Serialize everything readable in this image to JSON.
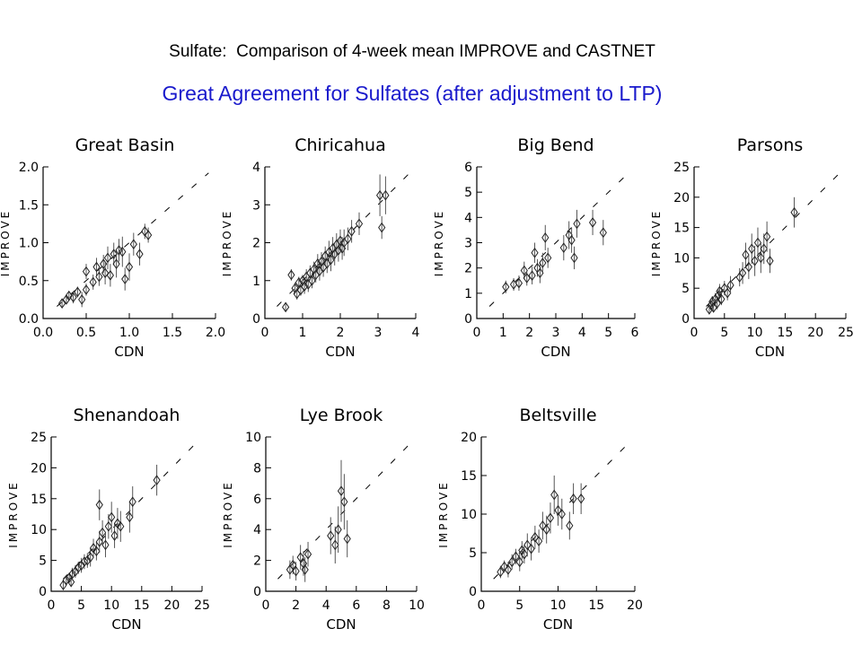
{
  "slide": {
    "title": "Sulfate:  Comparison of 4-week mean IMPROVE and CASTNET",
    "subtitle": "Great Agreement for Sulfates (after adjustment to LTP)",
    "title_color": "#000000",
    "subtitle_color": "#1a1acc"
  },
  "chart_data": [
    {
      "type": "scatter",
      "title": "Great Basin",
      "xlabel": "CDN",
      "ylabel": "IMPROVE",
      "xlim": [
        0,
        2.0
      ],
      "ylim": [
        0,
        2.0
      ],
      "xticks": [
        "0.0",
        "0.5",
        "1.0",
        "1.5",
        "2.0"
      ],
      "yticks": [
        "0.0",
        "0.5",
        "1.0",
        "1.5",
        "2.0"
      ],
      "reference_line": "1:1 dashed",
      "points": [
        {
          "x": 0.22,
          "y": 0.2,
          "err": 0.05
        },
        {
          "x": 0.27,
          "y": 0.25,
          "err": 0.06
        },
        {
          "x": 0.3,
          "y": 0.3,
          "err": 0.05
        },
        {
          "x": 0.35,
          "y": 0.28,
          "err": 0.08
        },
        {
          "x": 0.4,
          "y": 0.35,
          "err": 0.07
        },
        {
          "x": 0.45,
          "y": 0.25,
          "err": 0.1
        },
        {
          "x": 0.5,
          "y": 0.38,
          "err": 0.08
        },
        {
          "x": 0.5,
          "y": 0.62,
          "err": 0.1
        },
        {
          "x": 0.58,
          "y": 0.48,
          "err": 0.1
        },
        {
          "x": 0.62,
          "y": 0.68,
          "err": 0.12
        },
        {
          "x": 0.65,
          "y": 0.55,
          "err": 0.12
        },
        {
          "x": 0.7,
          "y": 0.72,
          "err": 0.12
        },
        {
          "x": 0.72,
          "y": 0.6,
          "err": 0.15
        },
        {
          "x": 0.75,
          "y": 0.8,
          "err": 0.15
        },
        {
          "x": 0.78,
          "y": 0.57,
          "err": 0.15
        },
        {
          "x": 0.82,
          "y": 0.85,
          "err": 0.15
        },
        {
          "x": 0.85,
          "y": 0.72,
          "err": 0.18
        },
        {
          "x": 0.88,
          "y": 0.9,
          "err": 0.15
        },
        {
          "x": 0.92,
          "y": 0.88,
          "err": 0.2
        },
        {
          "x": 0.95,
          "y": 0.52,
          "err": 0.15
        },
        {
          "x": 1.0,
          "y": 0.68,
          "err": 0.18
        },
        {
          "x": 1.05,
          "y": 0.98,
          "err": 0.15
        },
        {
          "x": 1.12,
          "y": 0.85,
          "err": 0.15
        },
        {
          "x": 1.18,
          "y": 1.15,
          "err": 0.1
        },
        {
          "x": 1.22,
          "y": 1.1,
          "err": 0.1
        }
      ]
    },
    {
      "type": "scatter",
      "title": "Chiricahua",
      "xlabel": "CDN",
      "ylabel": "IMPROVE",
      "xlim": [
        0,
        4
      ],
      "ylim": [
        0,
        4
      ],
      "xticks": [
        "0",
        "1",
        "2",
        "3",
        "4"
      ],
      "yticks": [
        "0",
        "1",
        "2",
        "3",
        "4"
      ],
      "reference_line": "1:1 dashed",
      "points": [
        {
          "x": 0.55,
          "y": 0.3,
          "err": 0.1
        },
        {
          "x": 0.7,
          "y": 1.15,
          "err": 0.15
        },
        {
          "x": 0.8,
          "y": 0.8,
          "err": 0.15
        },
        {
          "x": 0.85,
          "y": 0.65,
          "err": 0.15
        },
        {
          "x": 0.9,
          "y": 0.95,
          "err": 0.15
        },
        {
          "x": 0.95,
          "y": 0.75,
          "err": 0.15
        },
        {
          "x": 1.0,
          "y": 1.0,
          "err": 0.15
        },
        {
          "x": 1.05,
          "y": 0.85,
          "err": 0.2
        },
        {
          "x": 1.1,
          "y": 1.1,
          "err": 0.2
        },
        {
          "x": 1.15,
          "y": 0.9,
          "err": 0.2
        },
        {
          "x": 1.2,
          "y": 1.2,
          "err": 0.2
        },
        {
          "x": 1.25,
          "y": 1.0,
          "err": 0.2
        },
        {
          "x": 1.3,
          "y": 1.3,
          "err": 0.2
        },
        {
          "x": 1.35,
          "y": 1.15,
          "err": 0.2
        },
        {
          "x": 1.4,
          "y": 1.45,
          "err": 0.25
        },
        {
          "x": 1.45,
          "y": 1.25,
          "err": 0.25
        },
        {
          "x": 1.5,
          "y": 1.5,
          "err": 0.25
        },
        {
          "x": 1.55,
          "y": 1.35,
          "err": 0.25
        },
        {
          "x": 1.6,
          "y": 1.65,
          "err": 0.25
        },
        {
          "x": 1.65,
          "y": 1.45,
          "err": 0.25
        },
        {
          "x": 1.7,
          "y": 1.75,
          "err": 0.3
        },
        {
          "x": 1.75,
          "y": 1.55,
          "err": 0.3
        },
        {
          "x": 1.8,
          "y": 1.85,
          "err": 0.3
        },
        {
          "x": 1.85,
          "y": 1.7,
          "err": 0.3
        },
        {
          "x": 1.9,
          "y": 1.95,
          "err": 0.3
        },
        {
          "x": 1.95,
          "y": 1.8,
          "err": 0.3
        },
        {
          "x": 2.0,
          "y": 2.05,
          "err": 0.3
        },
        {
          "x": 2.05,
          "y": 1.85,
          "err": 0.3
        },
        {
          "x": 2.1,
          "y": 2.0,
          "err": 0.35
        },
        {
          "x": 2.2,
          "y": 2.1,
          "err": 0.3
        },
        {
          "x": 2.3,
          "y": 2.3,
          "err": 0.3
        },
        {
          "x": 2.5,
          "y": 2.5,
          "err": 0.3
        },
        {
          "x": 3.05,
          "y": 3.25,
          "err": 0.55
        },
        {
          "x": 3.1,
          "y": 2.4,
          "err": 0.3
        },
        {
          "x": 3.2,
          "y": 3.25,
          "err": 0.5
        }
      ]
    },
    {
      "type": "scatter",
      "title": "Big Bend",
      "xlabel": "CDN",
      "ylabel": "IMPROVE",
      "xlim": [
        0,
        6
      ],
      "ylim": [
        0,
        6
      ],
      "xticks": [
        "0",
        "1",
        "2",
        "3",
        "4",
        "5",
        "6"
      ],
      "yticks": [
        "0",
        "1",
        "2",
        "3",
        "4",
        "5",
        "6"
      ],
      "reference_line": "1:1 dashed",
      "points": [
        {
          "x": 1.1,
          "y": 1.25,
          "err": 0.25
        },
        {
          "x": 1.4,
          "y": 1.35,
          "err": 0.25
        },
        {
          "x": 1.6,
          "y": 1.4,
          "err": 0.3
        },
        {
          "x": 1.8,
          "y": 1.9,
          "err": 0.35
        },
        {
          "x": 1.9,
          "y": 1.6,
          "err": 0.3
        },
        {
          "x": 2.1,
          "y": 1.7,
          "err": 0.35
        },
        {
          "x": 2.2,
          "y": 2.6,
          "err": 0.4
        },
        {
          "x": 2.3,
          "y": 2.0,
          "err": 0.35
        },
        {
          "x": 2.4,
          "y": 1.8,
          "err": 0.4
        },
        {
          "x": 2.5,
          "y": 2.2,
          "err": 0.4
        },
        {
          "x": 2.6,
          "y": 3.2,
          "err": 0.5
        },
        {
          "x": 2.7,
          "y": 2.4,
          "err": 0.4
        },
        {
          "x": 3.3,
          "y": 2.8,
          "err": 0.5
        },
        {
          "x": 3.5,
          "y": 3.3,
          "err": 0.55
        },
        {
          "x": 3.6,
          "y": 3.1,
          "err": 0.5
        },
        {
          "x": 3.7,
          "y": 2.4,
          "err": 0.45
        },
        {
          "x": 3.8,
          "y": 3.75,
          "err": 0.55
        },
        {
          "x": 4.4,
          "y": 3.8,
          "err": 0.5
        },
        {
          "x": 4.8,
          "y": 3.4,
          "err": 0.5
        }
      ]
    },
    {
      "type": "scatter",
      "title": "Parsons",
      "xlabel": "CDN",
      "ylabel": "IMPROVE",
      "xlim": [
        0,
        25
      ],
      "ylim": [
        0,
        25
      ],
      "xticks": [
        "0",
        "5",
        "10",
        "15",
        "20",
        "25"
      ],
      "yticks": [
        "0",
        "5",
        "10",
        "15",
        "20",
        "25"
      ],
      "reference_line": "1:1 dashed",
      "points": [
        {
          "x": 2.5,
          "y": 1.5,
          "err": 0.8
        },
        {
          "x": 2.8,
          "y": 2.2,
          "err": 0.8
        },
        {
          "x": 3.0,
          "y": 2.8,
          "err": 0.9
        },
        {
          "x": 3.2,
          "y": 1.8,
          "err": 0.8
        },
        {
          "x": 3.5,
          "y": 3.2,
          "err": 1.0
        },
        {
          "x": 3.8,
          "y": 2.5,
          "err": 1.0
        },
        {
          "x": 4.0,
          "y": 3.8,
          "err": 1.0
        },
        {
          "x": 4.2,
          "y": 4.5,
          "err": 1.2
        },
        {
          "x": 4.5,
          "y": 3.2,
          "err": 1.0
        },
        {
          "x": 5.0,
          "y": 5.0,
          "err": 1.2
        },
        {
          "x": 5.5,
          "y": 4.2,
          "err": 1.2
        },
        {
          "x": 6.0,
          "y": 5.5,
          "err": 1.5
        },
        {
          "x": 7.5,
          "y": 6.8,
          "err": 1.5
        },
        {
          "x": 8.0,
          "y": 7.5,
          "err": 1.8
        },
        {
          "x": 8.5,
          "y": 10.5,
          "err": 2.0
        },
        {
          "x": 9.0,
          "y": 8.5,
          "err": 2.0
        },
        {
          "x": 9.5,
          "y": 11.5,
          "err": 2.5
        },
        {
          "x": 10.0,
          "y": 9.5,
          "err": 2.5
        },
        {
          "x": 10.5,
          "y": 12.5,
          "err": 2.5
        },
        {
          "x": 11.0,
          "y": 10.0,
          "err": 2.5
        },
        {
          "x": 11.5,
          "y": 11.5,
          "err": 2.5
        },
        {
          "x": 12.0,
          "y": 13.5,
          "err": 2.5
        },
        {
          "x": 12.5,
          "y": 9.5,
          "err": 2.0
        },
        {
          "x": 16.5,
          "y": 17.5,
          "err": 2.5
        }
      ]
    },
    {
      "type": "scatter",
      "title": "Shenandoah",
      "xlabel": "CDN",
      "ylabel": "IMPROVE",
      "xlim": [
        0,
        25
      ],
      "ylim": [
        0,
        25
      ],
      "xticks": [
        "0",
        "5",
        "10",
        "15",
        "20",
        "25"
      ],
      "yticks": [
        "0",
        "5",
        "10",
        "15",
        "20",
        "25"
      ],
      "reference_line": "1:1 dashed",
      "points": [
        {
          "x": 2.0,
          "y": 1.0,
          "err": 0.8
        },
        {
          "x": 2.5,
          "y": 1.8,
          "err": 0.8
        },
        {
          "x": 3.0,
          "y": 2.2,
          "err": 0.8
        },
        {
          "x": 3.3,
          "y": 1.5,
          "err": 0.8
        },
        {
          "x": 3.5,
          "y": 2.8,
          "err": 1.0
        },
        {
          "x": 4.0,
          "y": 3.2,
          "err": 1.0
        },
        {
          "x": 4.5,
          "y": 3.8,
          "err": 1.0
        },
        {
          "x": 5.0,
          "y": 4.2,
          "err": 1.2
        },
        {
          "x": 5.5,
          "y": 4.8,
          "err": 1.2
        },
        {
          "x": 6.0,
          "y": 5.0,
          "err": 1.2
        },
        {
          "x": 6.5,
          "y": 5.5,
          "err": 1.5
        },
        {
          "x": 7.0,
          "y": 7.0,
          "err": 1.5
        },
        {
          "x": 7.5,
          "y": 6.5,
          "err": 1.5
        },
        {
          "x": 8.0,
          "y": 8.0,
          "err": 1.8
        },
        {
          "x": 8.0,
          "y": 14.0,
          "err": 2.5
        },
        {
          "x": 8.5,
          "y": 9.5,
          "err": 2.0
        },
        {
          "x": 9.0,
          "y": 7.5,
          "err": 2.0
        },
        {
          "x": 9.5,
          "y": 10.5,
          "err": 2.0
        },
        {
          "x": 10.0,
          "y": 12.0,
          "err": 2.5
        },
        {
          "x": 10.5,
          "y": 9.0,
          "err": 2.0
        },
        {
          "x": 11.0,
          "y": 11.0,
          "err": 2.5
        },
        {
          "x": 11.5,
          "y": 10.5,
          "err": 2.5
        },
        {
          "x": 13.0,
          "y": 12.0,
          "err": 2.5
        },
        {
          "x": 13.5,
          "y": 14.5,
          "err": 2.5
        },
        {
          "x": 17.5,
          "y": 18.0,
          "err": 2.5
        }
      ]
    },
    {
      "type": "scatter",
      "title": "Lye Brook",
      "xlabel": "CDN",
      "ylabel": "IMPROVE",
      "xlim": [
        0,
        10
      ],
      "ylim": [
        0,
        10
      ],
      "xticks": [
        "0",
        "2",
        "4",
        "6",
        "8",
        "10"
      ],
      "yticks": [
        "0",
        "2",
        "4",
        "6",
        "8",
        "10"
      ],
      "reference_line": "1:1 dashed",
      "points": [
        {
          "x": 1.6,
          "y": 1.4,
          "err": 0.6
        },
        {
          "x": 1.8,
          "y": 1.7,
          "err": 0.6
        },
        {
          "x": 2.0,
          "y": 1.3,
          "err": 0.6
        },
        {
          "x": 2.3,
          "y": 2.2,
          "err": 0.8
        },
        {
          "x": 2.5,
          "y": 1.8,
          "err": 0.8
        },
        {
          "x": 2.6,
          "y": 1.4,
          "err": 0.8
        },
        {
          "x": 2.8,
          "y": 2.4,
          "err": 0.8
        },
        {
          "x": 4.3,
          "y": 3.6,
          "err": 1.2
        },
        {
          "x": 4.6,
          "y": 3.0,
          "err": 1.2
        },
        {
          "x": 4.8,
          "y": 4.0,
          "err": 1.5
        },
        {
          "x": 5.0,
          "y": 6.5,
          "err": 2.0
        },
        {
          "x": 5.2,
          "y": 5.8,
          "err": 1.8
        },
        {
          "x": 5.4,
          "y": 3.4,
          "err": 1.2
        }
      ]
    },
    {
      "type": "scatter",
      "title": "Beltsville",
      "xlabel": "CDN",
      "ylabel": "IMPROVE",
      "xlim": [
        0,
        20
      ],
      "ylim": [
        0,
        20
      ],
      "xticks": [
        "0",
        "5",
        "10",
        "15",
        "20"
      ],
      "yticks": [
        "0",
        "5",
        "10",
        "15",
        "20"
      ],
      "reference_line": "1:1 dashed",
      "points": [
        {
          "x": 2.5,
          "y": 2.5,
          "err": 0.8
        },
        {
          "x": 3.0,
          "y": 3.2,
          "err": 0.8
        },
        {
          "x": 3.5,
          "y": 2.8,
          "err": 1.0
        },
        {
          "x": 4.0,
          "y": 3.8,
          "err": 1.0
        },
        {
          "x": 4.5,
          "y": 4.5,
          "err": 1.0
        },
        {
          "x": 5.0,
          "y": 3.8,
          "err": 1.2
        },
        {
          "x": 5.3,
          "y": 5.3,
          "err": 1.2
        },
        {
          "x": 5.6,
          "y": 4.8,
          "err": 1.2
        },
        {
          "x": 6.0,
          "y": 6.0,
          "err": 1.5
        },
        {
          "x": 6.5,
          "y": 5.5,
          "err": 1.5
        },
        {
          "x": 7.0,
          "y": 7.0,
          "err": 1.5
        },
        {
          "x": 7.5,
          "y": 6.5,
          "err": 1.5
        },
        {
          "x": 8.0,
          "y": 8.5,
          "err": 1.8
        },
        {
          "x": 8.5,
          "y": 8.0,
          "err": 1.8
        },
        {
          "x": 9.0,
          "y": 9.5,
          "err": 2.0
        },
        {
          "x": 9.5,
          "y": 12.5,
          "err": 2.5
        },
        {
          "x": 10.0,
          "y": 10.5,
          "err": 2.0
        },
        {
          "x": 10.5,
          "y": 10.0,
          "err": 2.0
        },
        {
          "x": 11.5,
          "y": 8.5,
          "err": 1.8
        },
        {
          "x": 12.0,
          "y": 12.0,
          "err": 2.0
        },
        {
          "x": 13.0,
          "y": 12.0,
          "err": 2.0
        }
      ]
    }
  ]
}
